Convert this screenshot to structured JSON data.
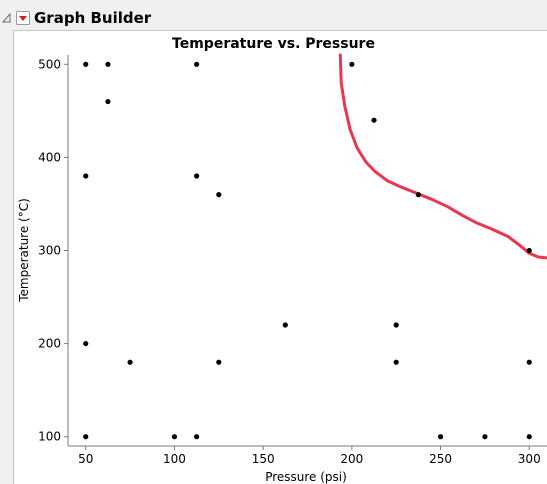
{
  "window": {
    "title": "Graph Builder",
    "disclosure_icon": "disclosure-triangle-icon",
    "hotspot_icon": "red-triangle-menu-icon"
  },
  "colors": {
    "background": "#f0f0f0",
    "plot_background": "#ffffff",
    "points": "#000000",
    "curve": "#e8374f"
  },
  "chart_data": {
    "type": "scatter",
    "title": "Temperature vs. Pressure",
    "xlabel": "Pressure (psi)",
    "ylabel": "Temperature (°C)",
    "xlim": [
      40,
      310
    ],
    "ylim": [
      90,
      510
    ],
    "xticks": [
      50,
      100,
      150,
      200,
      250,
      300
    ],
    "yticks": [
      100,
      200,
      300,
      400,
      500
    ],
    "grid": false,
    "points": [
      [
        50,
        500
      ],
      [
        62.5,
        500
      ],
      [
        112.5,
        500
      ],
      [
        200,
        500
      ],
      [
        62.5,
        460
      ],
      [
        212.5,
        440
      ],
      [
        50,
        380
      ],
      [
        112.5,
        380
      ],
      [
        125,
        360
      ],
      [
        237.5,
        360
      ],
      [
        300,
        300
      ],
      [
        162.5,
        220
      ],
      [
        225,
        220
      ],
      [
        50,
        200
      ],
      [
        75,
        180
      ],
      [
        125,
        180
      ],
      [
        225,
        180
      ],
      [
        300,
        180
      ],
      [
        50,
        100
      ],
      [
        100,
        100
      ],
      [
        112.5,
        100
      ],
      [
        250,
        100
      ],
      [
        275,
        100
      ],
      [
        300,
        100
      ]
    ],
    "curve": {
      "points": [
        [
          193.5,
          510
        ],
        [
          194,
          480
        ],
        [
          196,
          455
        ],
        [
          199,
          430
        ],
        [
          203,
          410
        ],
        [
          208,
          395
        ],
        [
          213,
          385
        ],
        [
          220,
          375
        ],
        [
          228,
          368
        ],
        [
          236,
          362
        ],
        [
          245,
          355
        ],
        [
          254,
          347
        ],
        [
          262,
          338
        ],
        [
          270,
          330
        ],
        [
          279,
          323
        ],
        [
          288,
          315
        ],
        [
          295,
          305
        ],
        [
          300,
          297
        ],
        [
          305,
          293
        ],
        [
          310,
          292
        ]
      ]
    }
  }
}
